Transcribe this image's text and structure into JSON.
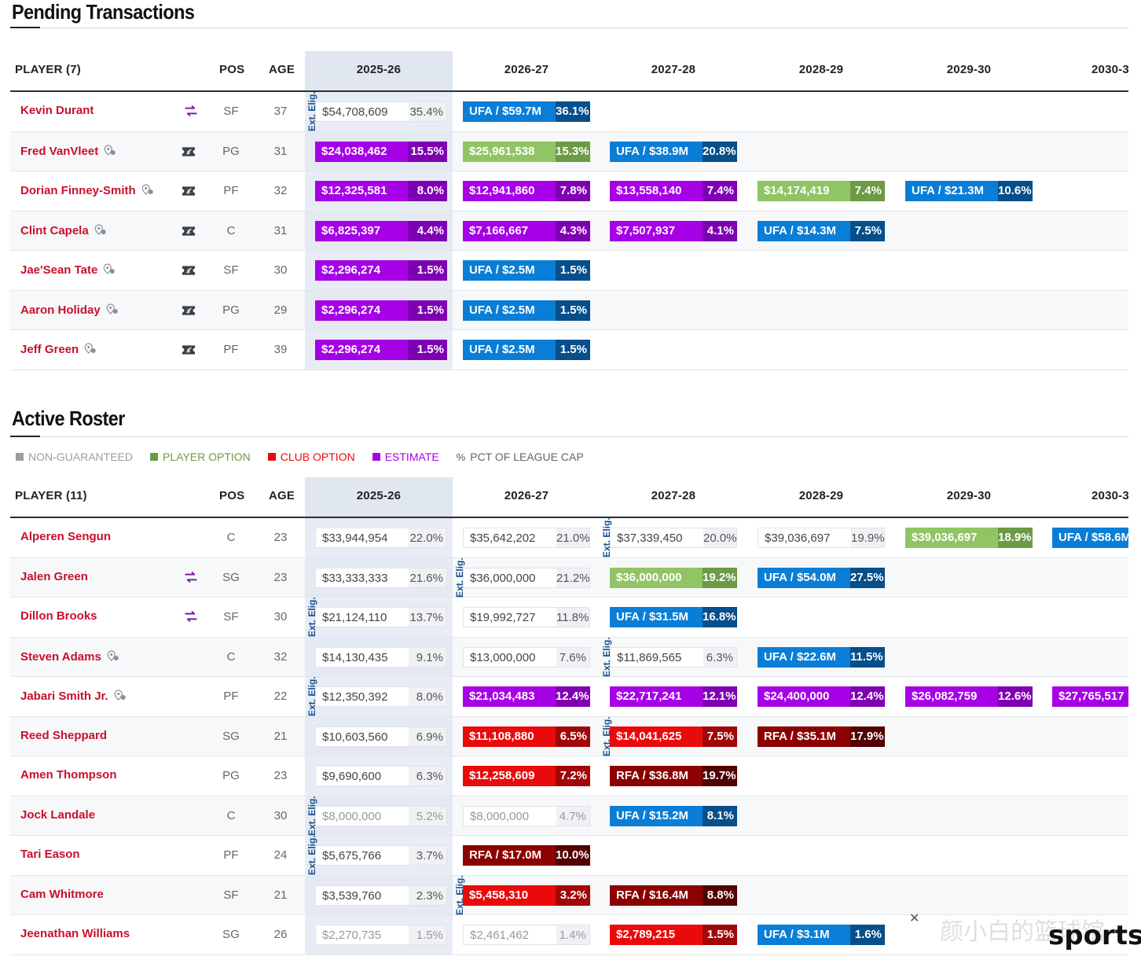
{
  "pending": {
    "title": "Pending Transactions",
    "headers": {
      "player": "PLAYER (7)",
      "pos": "POS",
      "age": "AGE",
      "seasons": [
        "2025-26",
        "2026-27",
        "2027-28",
        "2028-29",
        "2029-30",
        "2030-3"
      ]
    },
    "rows": [
      {
        "name": "Kevin Durant",
        "icon": "trade-icon",
        "loc": false,
        "pos": "SF",
        "age": "37",
        "elig_col": 0,
        "cells": [
          {
            "t": "white",
            "a": "$54,708,609",
            "p": "35.4%"
          },
          {
            "t": "ufa",
            "a": "UFA / $59.7M",
            "p": "36.1%"
          }
        ]
      },
      {
        "name": "Fred VanVleet",
        "icon": "ticket-icon",
        "loc": true,
        "pos": "PG",
        "age": "31",
        "cells": [
          {
            "t": "est",
            "a": "$24,038,462",
            "p": "15.5%"
          },
          {
            "t": "po",
            "a": "$25,961,538",
            "p": "15.3%"
          },
          {
            "t": "ufa",
            "a": "UFA / $38.9M",
            "p": "20.8%"
          }
        ]
      },
      {
        "name": "Dorian Finney-Smith",
        "icon": "ticket-icon",
        "loc": true,
        "pos": "PF",
        "age": "32",
        "cells": [
          {
            "t": "est",
            "a": "$12,325,581",
            "p": "8.0%"
          },
          {
            "t": "est",
            "a": "$12,941,860",
            "p": "7.8%"
          },
          {
            "t": "est",
            "a": "$13,558,140",
            "p": "7.4%"
          },
          {
            "t": "po",
            "a": "$14,174,419",
            "p": "7.4%"
          },
          {
            "t": "ufa",
            "a": "UFA / $21.3M",
            "p": "10.6%"
          }
        ]
      },
      {
        "name": "Clint Capela",
        "icon": "ticket-icon",
        "loc": true,
        "pos": "C",
        "age": "31",
        "cells": [
          {
            "t": "est",
            "a": "$6,825,397",
            "p": "4.4%"
          },
          {
            "t": "est",
            "a": "$7,166,667",
            "p": "4.3%"
          },
          {
            "t": "est",
            "a": "$7,507,937",
            "p": "4.1%"
          },
          {
            "t": "ufa",
            "a": "UFA / $14.3M",
            "p": "7.5%"
          }
        ]
      },
      {
        "name": "Jae'Sean Tate",
        "icon": "ticket-icon",
        "loc": true,
        "pos": "SF",
        "age": "30",
        "cells": [
          {
            "t": "est",
            "a": "$2,296,274",
            "p": "1.5%"
          },
          {
            "t": "ufa",
            "a": "UFA / $2.5M",
            "p": "1.5%"
          }
        ]
      },
      {
        "name": "Aaron Holiday",
        "icon": "ticket-icon",
        "loc": true,
        "pos": "PG",
        "age": "29",
        "cells": [
          {
            "t": "est",
            "a": "$2,296,274",
            "p": "1.5%"
          },
          {
            "t": "ufa",
            "a": "UFA / $2.5M",
            "p": "1.5%"
          }
        ]
      },
      {
        "name": "Jeff Green",
        "icon": "ticket-icon",
        "loc": true,
        "pos": "PF",
        "age": "39",
        "cells": [
          {
            "t": "est",
            "a": "$2,296,274",
            "p": "1.5%"
          },
          {
            "t": "ufa",
            "a": "UFA / $2.5M",
            "p": "1.5%"
          }
        ]
      }
    ]
  },
  "active": {
    "title": "Active Roster",
    "legend": [
      {
        "label": "NON-GUARANTEED",
        "color": "#9e9e9e"
      },
      {
        "label": "PLAYER OPTION",
        "color": "#6d9a45"
      },
      {
        "label": "CLUB OPTION",
        "color": "#e90b0b"
      },
      {
        "label": "ESTIMATE",
        "color": "#a500e6"
      },
      {
        "label": "PCT OF LEAGUE CAP",
        "color": "#555555",
        "glyph": "%"
      }
    ],
    "headers": {
      "player": "PLAYER (11)",
      "pos": "POS",
      "age": "AGE",
      "seasons": [
        "2025-26",
        "2026-27",
        "2027-28",
        "2028-29",
        "2029-30",
        "2030-3"
      ]
    },
    "rows": [
      {
        "name": "Alperen Sengun",
        "icon": "",
        "loc": false,
        "pos": "C",
        "age": "23",
        "elig_col": 2,
        "cells": [
          {
            "t": "white",
            "a": "$33,944,954",
            "p": "22.0%"
          },
          {
            "t": "white",
            "a": "$35,642,202",
            "p": "21.0%"
          },
          {
            "t": "white",
            "a": "$37,339,450",
            "p": "20.0%"
          },
          {
            "t": "white",
            "a": "$39,036,697",
            "p": "19.9%"
          },
          {
            "t": "po",
            "a": "$39,036,697",
            "p": "18.9%"
          },
          {
            "t": "ufa",
            "a": "UFA / $58.6M",
            "p": ""
          }
        ]
      },
      {
        "name": "Jalen Green",
        "icon": "trade-icon",
        "loc": false,
        "pos": "SG",
        "age": "23",
        "elig_col": 1,
        "cells": [
          {
            "t": "white",
            "a": "$33,333,333",
            "p": "21.6%"
          },
          {
            "t": "white",
            "a": "$36,000,000",
            "p": "21.2%"
          },
          {
            "t": "po",
            "a": "$36,000,000",
            "p": "19.2%"
          },
          {
            "t": "ufa",
            "a": "UFA / $54.0M",
            "p": "27.5%"
          }
        ]
      },
      {
        "name": "Dillon Brooks",
        "icon": "trade-icon",
        "loc": false,
        "pos": "SF",
        "age": "30",
        "elig_col": 0,
        "cells": [
          {
            "t": "white",
            "a": "$21,124,110",
            "p": "13.7%"
          },
          {
            "t": "white",
            "a": "$19,992,727",
            "p": "11.8%"
          },
          {
            "t": "ufa",
            "a": "UFA / $31.5M",
            "p": "16.8%"
          }
        ]
      },
      {
        "name": "Steven Adams",
        "icon": "",
        "loc": true,
        "pos": "C",
        "age": "32",
        "elig_col": 2,
        "cells": [
          {
            "t": "white",
            "a": "$14,130,435",
            "p": "9.1%"
          },
          {
            "t": "white",
            "a": "$13,000,000",
            "p": "7.6%"
          },
          {
            "t": "white",
            "a": "$11,869,565",
            "p": "6.3%"
          },
          {
            "t": "ufa",
            "a": "UFA / $22.6M",
            "p": "11.5%"
          }
        ]
      },
      {
        "name": "Jabari Smith Jr.",
        "icon": "",
        "loc": true,
        "pos": "PF",
        "age": "22",
        "elig_col": 0,
        "cells": [
          {
            "t": "white",
            "a": "$12,350,392",
            "p": "8.0%"
          },
          {
            "t": "est",
            "a": "$21,034,483",
            "p": "12.4%"
          },
          {
            "t": "est",
            "a": "$22,717,241",
            "p": "12.1%"
          },
          {
            "t": "est",
            "a": "$24,400,000",
            "p": "12.4%"
          },
          {
            "t": "est",
            "a": "$26,082,759",
            "p": "12.6%"
          },
          {
            "t": "est",
            "a": "$27,765,517",
            "p": ""
          }
        ]
      },
      {
        "name": "Reed Sheppard",
        "icon": "",
        "loc": false,
        "pos": "SG",
        "age": "21",
        "elig_col": 2,
        "cells": [
          {
            "t": "white",
            "a": "$10,603,560",
            "p": "6.9%"
          },
          {
            "t": "club",
            "a": "$11,108,880",
            "p": "6.5%"
          },
          {
            "t": "club",
            "a": "$14,041,625",
            "p": "7.5%"
          },
          {
            "t": "rfa",
            "a": "RFA / $35.1M",
            "p": "17.9%"
          }
        ]
      },
      {
        "name": "Amen Thompson",
        "icon": "",
        "loc": false,
        "pos": "PG",
        "age": "23",
        "cells": [
          {
            "t": "white",
            "a": "$9,690,600",
            "p": "6.3%"
          },
          {
            "t": "club",
            "a": "$12,258,609",
            "p": "7.2%"
          },
          {
            "t": "rfa",
            "a": "RFA / $36.8M",
            "p": "19.7%"
          }
        ]
      },
      {
        "name": "Jock Landale",
        "icon": "",
        "loc": false,
        "pos": "C",
        "age": "30",
        "elig_col": 0,
        "cells": [
          {
            "t": "ng",
            "a": "$8,000,000",
            "p": "5.2%"
          },
          {
            "t": "ng",
            "a": "$8,000,000",
            "p": "4.7%"
          },
          {
            "t": "ufa",
            "a": "UFA / $15.2M",
            "p": "8.1%"
          }
        ]
      },
      {
        "name": "Tari Eason",
        "icon": "",
        "loc": false,
        "pos": "PF",
        "age": "24",
        "elig_col": 0,
        "cells": [
          {
            "t": "white",
            "a": "$5,675,766",
            "p": "3.7%"
          },
          {
            "t": "rfa",
            "a": "RFA / $17.0M",
            "p": "10.0%"
          }
        ]
      },
      {
        "name": "Cam Whitmore",
        "icon": "",
        "loc": false,
        "pos": "SF",
        "age": "21",
        "elig_col": 1,
        "cells": [
          {
            "t": "white",
            "a": "$3,539,760",
            "p": "2.3%"
          },
          {
            "t": "club",
            "a": "$5,458,310",
            "p": "3.2%"
          },
          {
            "t": "rfa",
            "a": "RFA / $16.4M",
            "p": "8.8%"
          }
        ]
      },
      {
        "name": "Jeenathan Williams",
        "icon": "",
        "loc": false,
        "pos": "SG",
        "age": "26",
        "cells": [
          {
            "t": "ng",
            "a": "$2,270,735",
            "p": "1.5%"
          },
          {
            "t": "ng",
            "a": "$2,461,462",
            "p": "1.4%"
          },
          {
            "t": "club",
            "a": "$2,789,215",
            "p": "1.5%"
          },
          {
            "t": "ufa",
            "a": "UFA / $3.1M",
            "p": "1.6%"
          }
        ]
      }
    ]
  },
  "elig_label": "Ext. Elig.",
  "watermark": {
    "text": "颜小白的篮球馆",
    "brand": "sports",
    "close": "✕"
  }
}
